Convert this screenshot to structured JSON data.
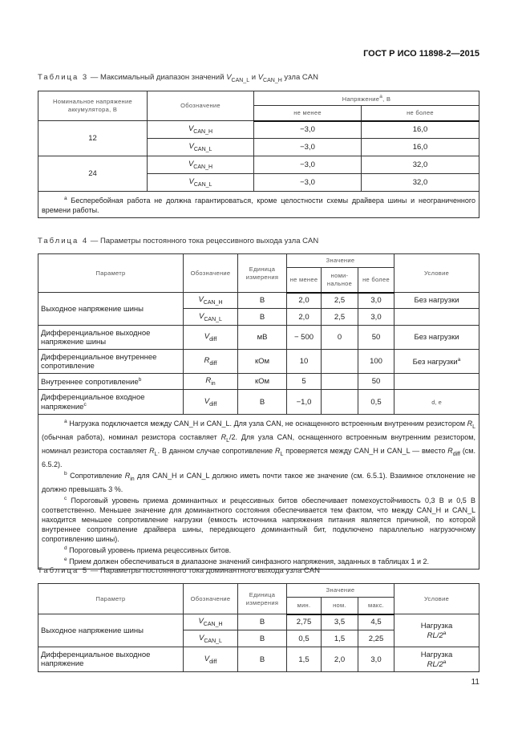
{
  "header": {
    "standard": "ГОСТ Р ИСО 11898-2—2015"
  },
  "page_number": "11",
  "table3": {
    "caption_prefix": "Таблица 3",
    "caption": [
      {
        "t": " — Максимальный диапазон значений "
      },
      {
        "i": "V",
        "sub": "CAN_L"
      },
      {
        "t": " и "
      },
      {
        "i": "V",
        "sub": "CAN_H"
      },
      {
        "t": " узла CAN"
      }
    ],
    "headers": {
      "battery": "Номинальное напряжение аккумулятора, В",
      "designation": "Обозначение",
      "voltage": "Напряжение",
      "voltage_sup": "a",
      "voltage_unit": ", В",
      "min": "не менее",
      "max": "не более"
    },
    "rows": [
      [
        {
          "text": "12",
          "rowspan": 2
        },
        {
          "i": "V",
          "sub": "CAN_H"
        },
        "−3,0",
        "16,0"
      ],
      [
        {
          "i": "V",
          "sub": "CAN_L"
        },
        "−3,0",
        "16,0"
      ],
      [
        {
          "text": "24",
          "rowspan": 2
        },
        {
          "i": "V",
          "sub": "CAN_H"
        },
        "−3,0",
        "32,0"
      ],
      [
        {
          "i": "V",
          "sub": "CAN_L"
        },
        "−3,0",
        "32,0"
      ]
    ],
    "footnotes": [
      {
        "mark": "a",
        "seg": [
          {
            "t": " Бесперебойная работа не должна гарантироваться, кроме целостности схемы драйвера шины и неограниченного времени работы."
          }
        ]
      }
    ]
  },
  "table4": {
    "caption_prefix": "Таблица 4",
    "caption": [
      {
        "t": " — Параметры постоянного тока рецессивного выхода узла CAN"
      }
    ],
    "headers": {
      "param": "Параметр",
      "designation": "Обозначение",
      "unit": "Единица измерения",
      "value": "Значение",
      "min": "не менее",
      "nom": "номи-нальное",
      "max": "не более",
      "condition": "Условие"
    },
    "rows": [
      [
        {
          "text": "Выходное напряжение шины",
          "rowspan": 2,
          "l": true
        },
        {
          "i": "V",
          "sub": "CAN_H"
        },
        "В",
        "2,0",
        "2,5",
        "3,0",
        "Без нагрузки"
      ],
      [
        {
          "i": "V",
          "sub": "CAN_L"
        },
        "В",
        "2,0",
        "2,5",
        "3,0",
        ""
      ],
      [
        {
          "text": "Дифференциальное выходное напряжение шины",
          "l": true
        },
        {
          "i": "V",
          "sub": "diff"
        },
        "мВ",
        "− 500",
        "0",
        "50",
        "Без нагрузки"
      ],
      [
        {
          "text": "Дифференциальное внутреннее сопротивление",
          "l": true
        },
        {
          "i": "R",
          "sub": "diff"
        },
        "кОм",
        "10",
        "",
        "100",
        {
          "text": "Без нагрузки",
          "sup": "a"
        }
      ],
      [
        {
          "text": "Внутреннее сопротивление",
          "sup": "b",
          "l": true
        },
        {
          "i": "R",
          "sub": "in"
        },
        "кОм",
        "5",
        "",
        "50",
        ""
      ],
      [
        {
          "text": "Дифференциальное входное напряжение",
          "sup": "c",
          "l": true
        },
        {
          "i": "V",
          "sub": "diff"
        },
        "В",
        "−1,0",
        "",
        "0,5",
        {
          "text": "d, e",
          "small": true
        }
      ]
    ],
    "footnotes": [
      {
        "mark": "a",
        "seg": [
          {
            "t": " Нагрузка подключается между CAN_H и CAN_L. Для узла CAN, не оснащенного встроенным внутренним резистором "
          },
          {
            "i": "R",
            "sub": "L"
          },
          {
            "t": " (обычная работа), номинал резистора составляет "
          },
          {
            "i": "R",
            "sub": "L"
          },
          {
            "t": "/2. Для узла CAN, оснащенного встроенным внутренним резистором, номинал резистора составляет "
          },
          {
            "i": "R",
            "sub": "L"
          },
          {
            "t": ". В данном случае сопротивление "
          },
          {
            "i": "R",
            "sub": "L"
          },
          {
            "t": " проверяется между CAN_H и CAN_L — вместо "
          },
          {
            "i": "R",
            "sub": "diff"
          },
          {
            "t": " (см. 6.5.2)."
          }
        ]
      },
      {
        "mark": "b",
        "seg": [
          {
            "t": " Сопротивление "
          },
          {
            "i": "R",
            "sub": "in"
          },
          {
            "t": " для CAN_H и CAN_L должно иметь почти такое же значение (см. 6.5.1). Взаимное отклонение не должно превышать 3 %."
          }
        ]
      },
      {
        "mark": "c",
        "seg": [
          {
            "t": " Пороговый уровень приема доминантных и рецессивных битов обеспечивает помехоустойчивость 0,3 В и 0,5 В соответственно. Меньшее значение для доминантного состояния обеспечивается тем фактом, что между CAN_H и CAN_L находится меньшее сопротивление нагрузки (емкость источника напряжения питания является причиной, по которой внутреннее сопротивление драйвера шины, передающего доминантный бит, подключено параллельно нагрузочному сопротивлению шины)."
          }
        ]
      },
      {
        "mark": "d",
        "seg": [
          {
            "t": " Пороговый уровень приема рецессивных битов."
          }
        ]
      },
      {
        "mark": "e",
        "seg": [
          {
            "t": " Прием должен обеспечиваться в диапазоне значений синфазного напряжения, заданных в таблицах 1 и 2."
          }
        ]
      }
    ]
  },
  "table5": {
    "caption_prefix": "Таблица 5",
    "caption": [
      {
        "t": " — Параметры постоянного тока доминантного выхода узла CAN"
      }
    ],
    "headers": {
      "param": "Параметр",
      "designation": "Обозначение",
      "unit": "Единица измерения",
      "value": "Значение",
      "min": "мин.",
      "nom": "ном.",
      "max": "макс.",
      "condition": "Условие"
    },
    "rows": [
      [
        {
          "text": "Выходное напряжение шины",
          "rowspan": 2,
          "l": true
        },
        {
          "i": "V",
          "sub": "CAN_H"
        },
        "В",
        "2,75",
        "3,5",
        "4,5",
        {
          "text": "Нагрузка",
          "line2": "RL/2",
          "sup": "a",
          "rowspan": 2
        }
      ],
      [
        {
          "i": "V",
          "sub": "CAN_L"
        },
        "В",
        "0,5",
        "1,5",
        "2,25"
      ],
      [
        {
          "text": "Дифференциальное выходное напряжение",
          "l": true
        },
        {
          "i": "V",
          "sub": "diff"
        },
        "В",
        "1,5",
        "2,0",
        "3,0",
        {
          "text": "Нагрузка",
          "line2": "RL/2",
          "sup": "a"
        }
      ]
    ]
  }
}
